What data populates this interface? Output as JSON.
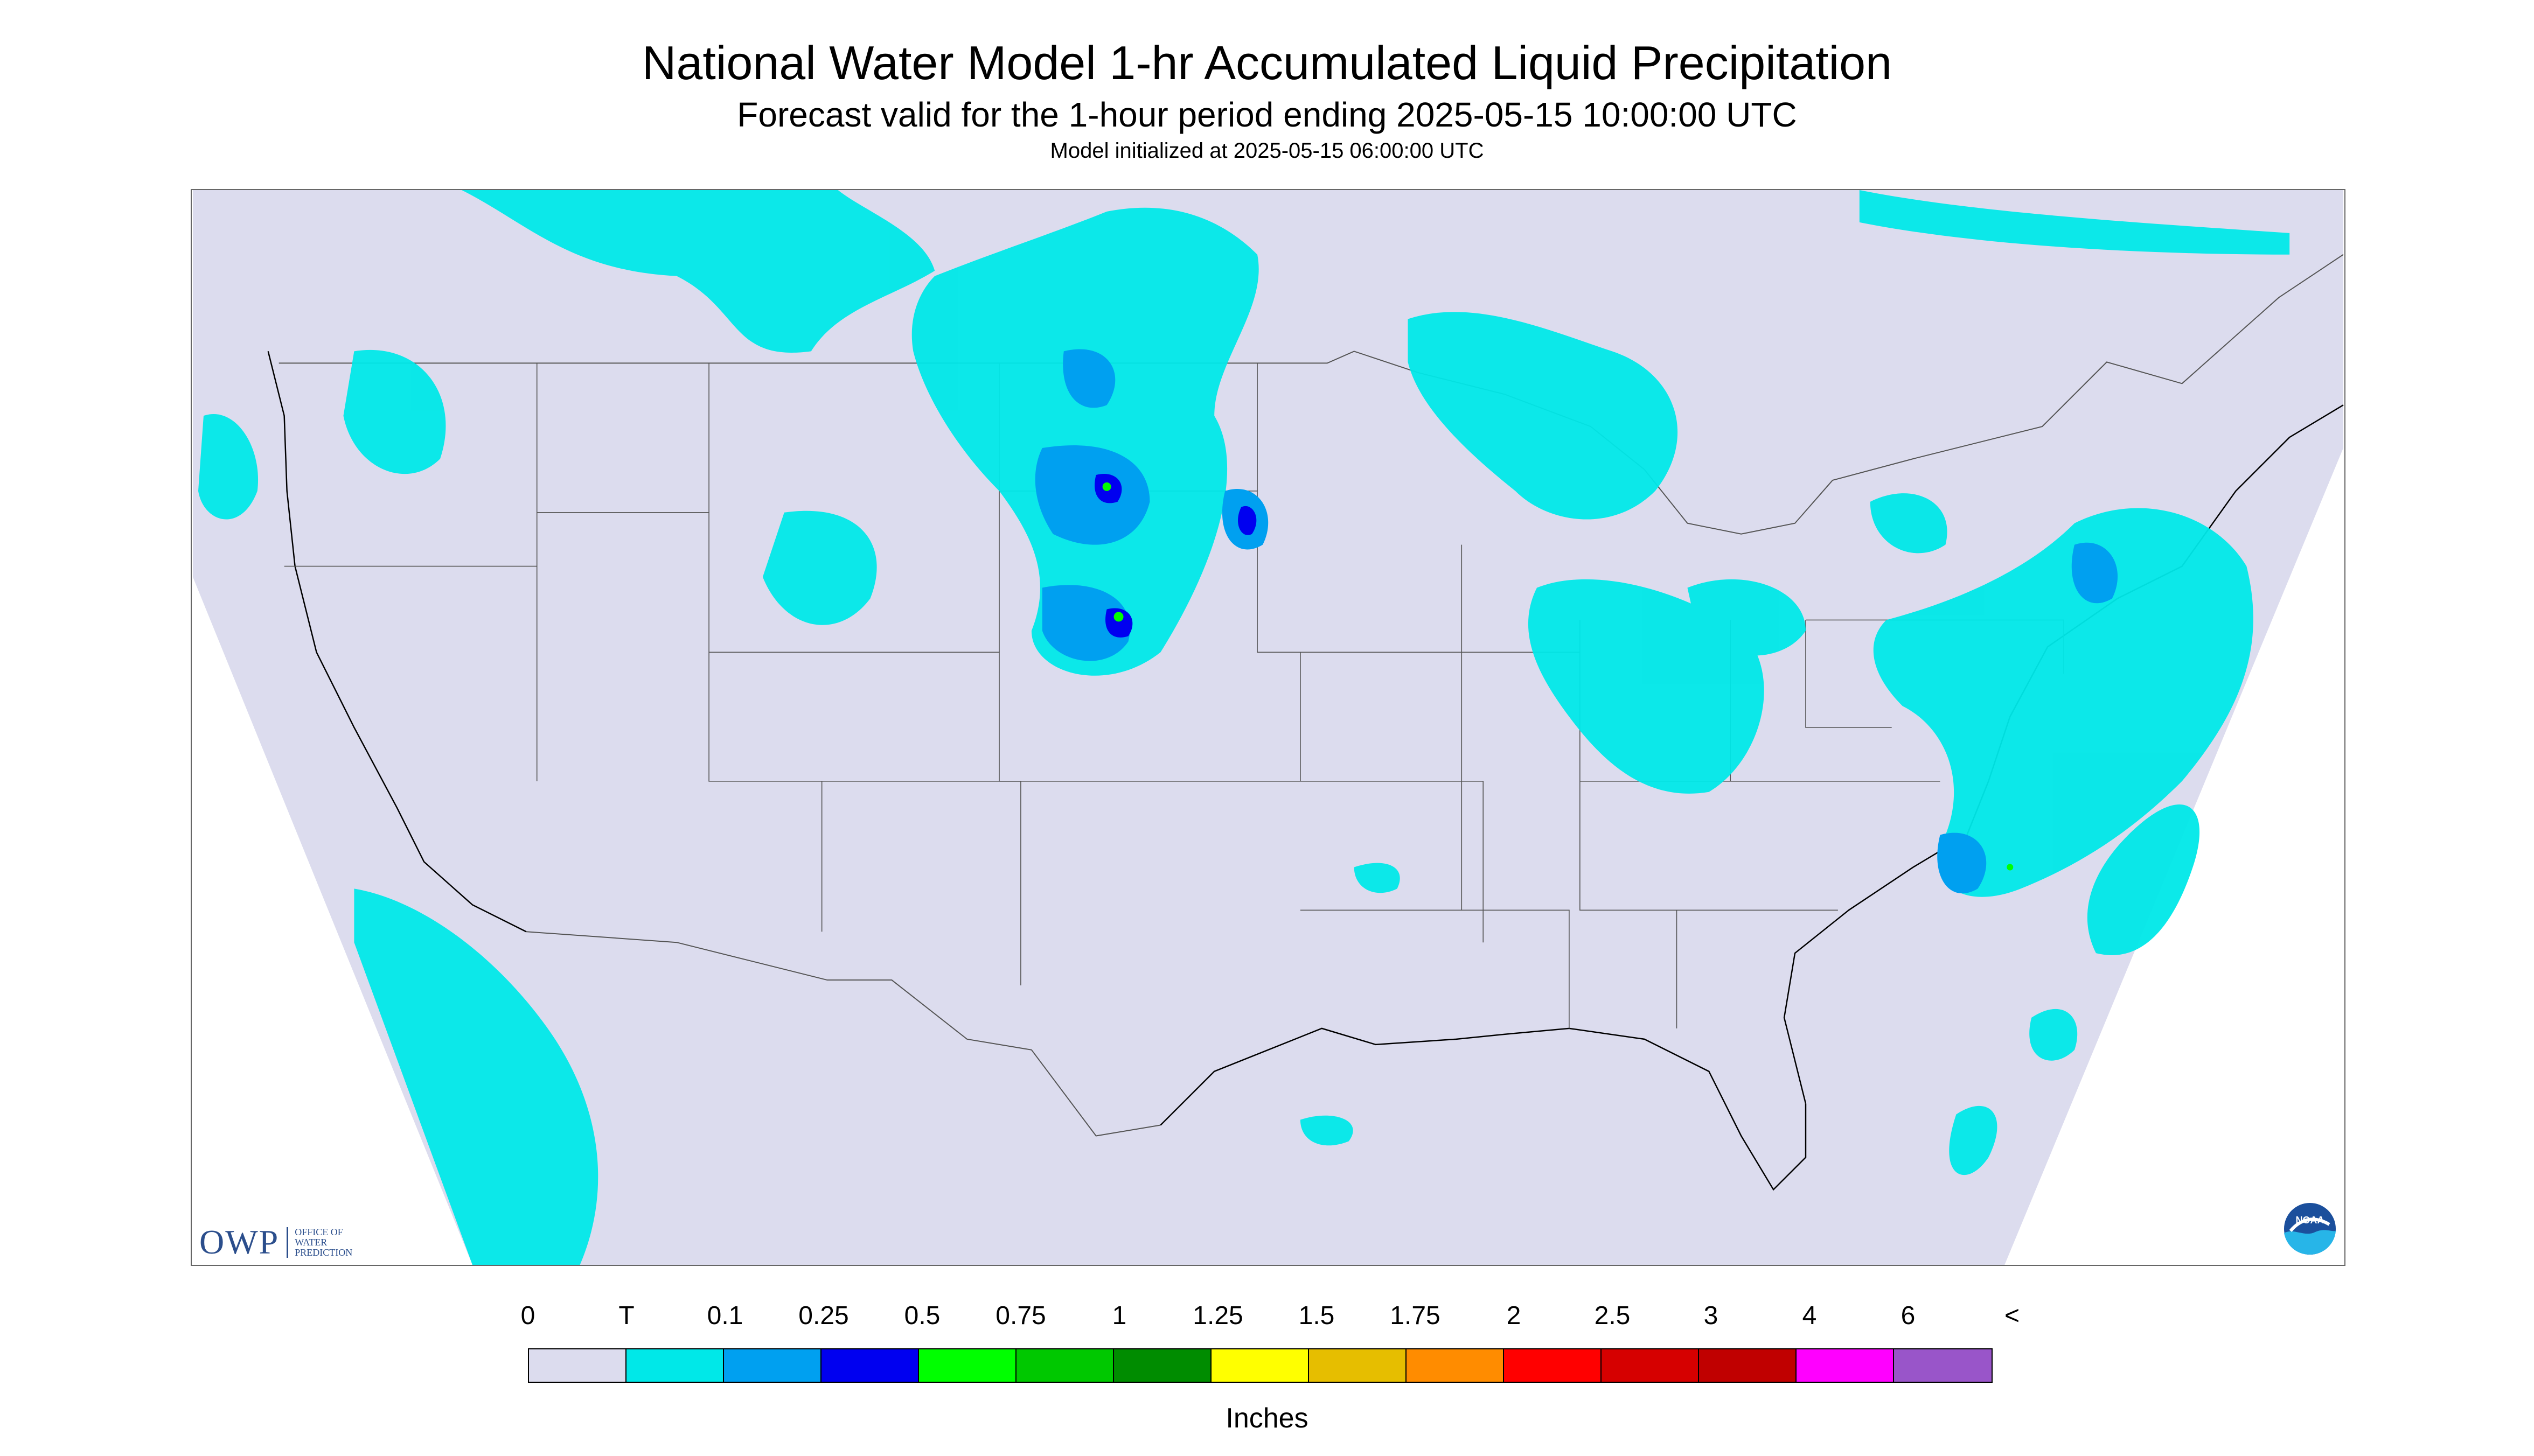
{
  "header": {
    "title": "National Water Model 1-hr Accumulated Liquid Precipitation",
    "subtitle": "Forecast valid for the 1-hour period ending 2025-05-15 10:00:00 UTC",
    "init_line": "Model initialized at 2025-05-15 06:00:00 UTC"
  },
  "map": {
    "background_color": "#dcdcee",
    "outside_domain_color": "#ffffff",
    "boundary_color": "#555555",
    "coastline_color": "#000000"
  },
  "logos": {
    "owp_text": "OWP",
    "owp_subtext": "OFFICE OF WATER PREDICTION",
    "noaa_text": "NOAA"
  },
  "legend": {
    "labels": [
      "0",
      "T",
      "0.1",
      "0.25",
      "0.5",
      "0.75",
      "1",
      "1.25",
      "1.5",
      "1.75",
      "2",
      "2.5",
      "3",
      "4",
      "6",
      "<"
    ],
    "colors": [
      "#dcdcee",
      "#00e8e8",
      "#00a0f0",
      "#0000f0",
      "#00ff00",
      "#00c800",
      "#008c00",
      "#ffff00",
      "#e6be00",
      "#ff8c00",
      "#ff0000",
      "#d60000",
      "#c00000",
      "#ff00ff",
      "#9955c9"
    ],
    "units": "Inches"
  }
}
